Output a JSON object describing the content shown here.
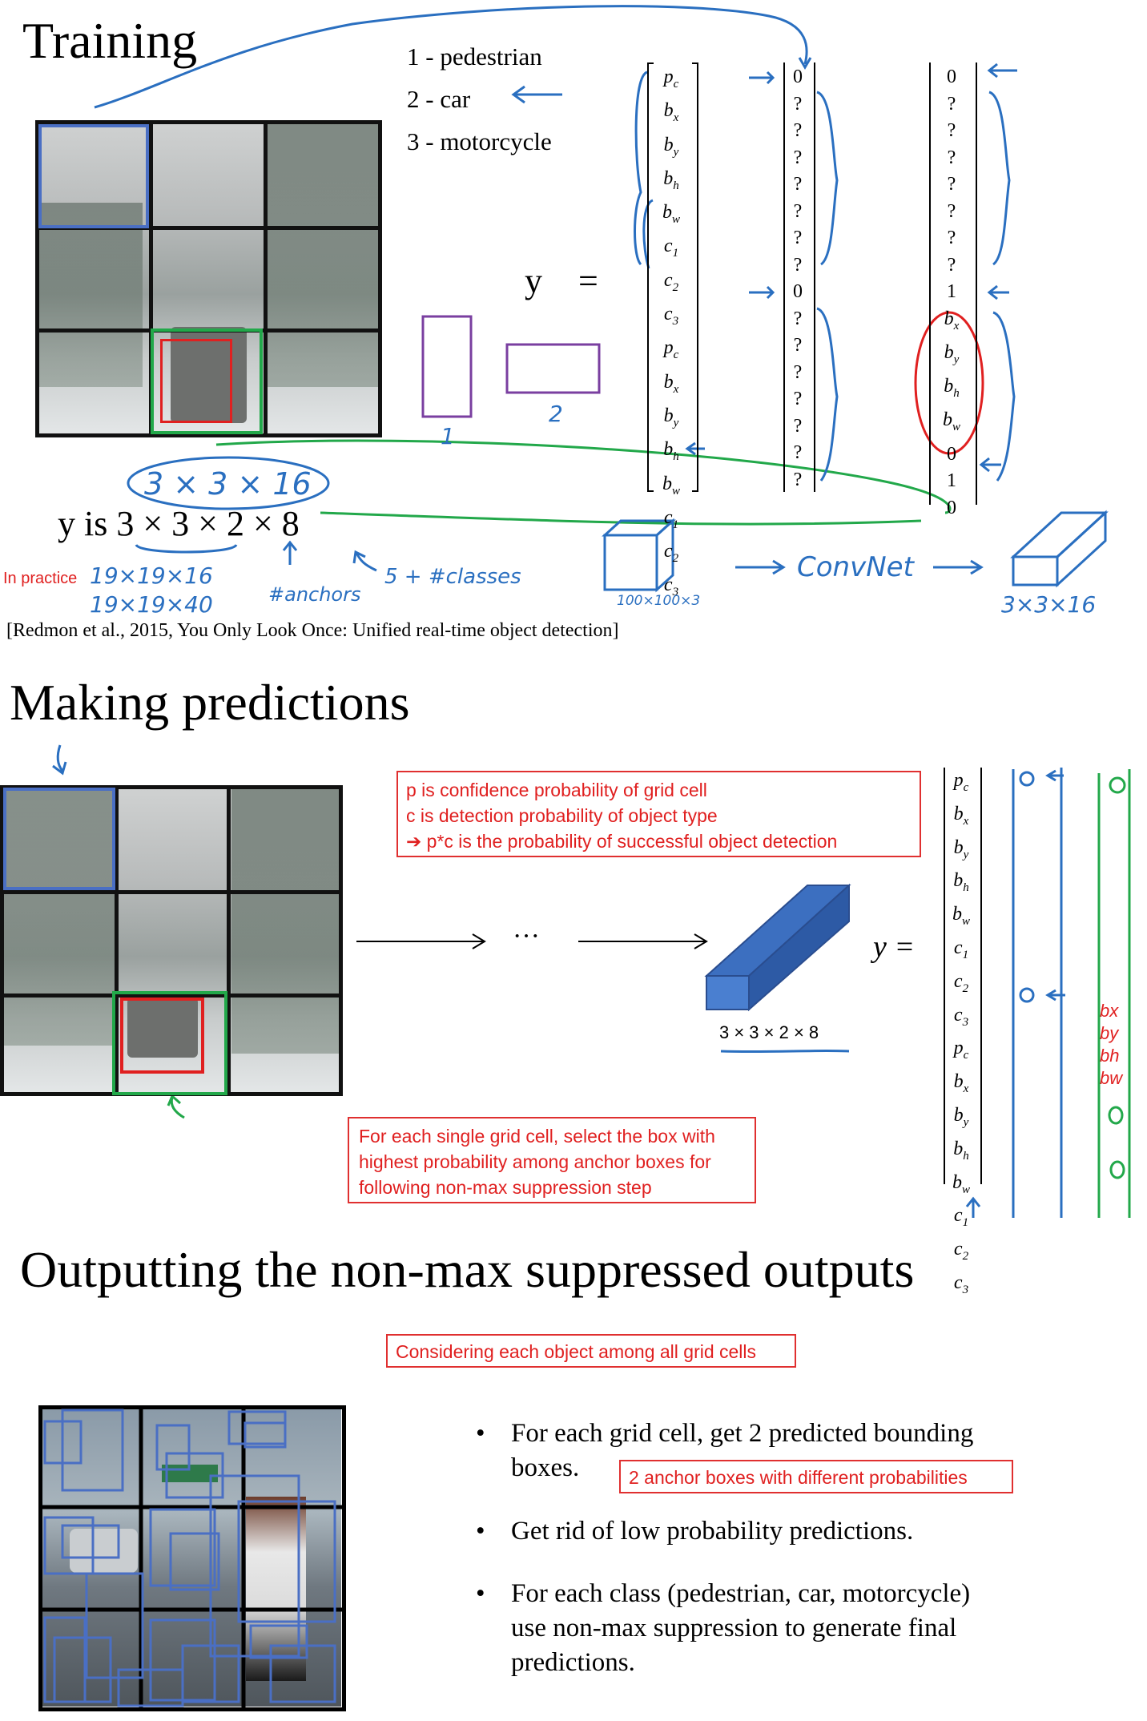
{
  "training": {
    "title": "Training",
    "classes": [
      "1 -  pedestrian",
      "2 -  car",
      "3 -  motorcycle"
    ],
    "y_label": "y",
    "equals": "=",
    "vector_labels": [
      "pc",
      "bx",
      "by",
      "bh",
      "bw",
      "c1",
      "c2",
      "c3",
      "pc",
      "bx",
      "by",
      "bh",
      "bw",
      "c1",
      "c2",
      "c3"
    ],
    "vector_q": [
      "0",
      "?",
      "?",
      "?",
      "?",
      "?",
      "?",
      "?",
      "0",
      "?",
      "?",
      "?",
      "?",
      "?",
      "?",
      "?"
    ],
    "vector_car": [
      "0",
      "?",
      "?",
      "?",
      "?",
      "?",
      "?",
      "?",
      "1",
      "bx",
      "by",
      "bh",
      "bw",
      "0",
      "1",
      "0"
    ],
    "anchor_labels": [
      "1",
      "2"
    ],
    "shape_hand": "3 × 3 × 16",
    "y_shape": "y  is 3 × 3 × 2 × 8",
    "in_practice": "In practice",
    "practice_1": "19×19×16",
    "practice_2": "19×19×40",
    "anchors_note": "#anchors",
    "classes_note": "5 + #classes",
    "input_size": "100×100×3",
    "convnet": "ConvNet",
    "output_size": "3×3×16",
    "citation": "[Redmon et al., 2015, You Only Look Once: Unified real-time object detection]"
  },
  "predictions": {
    "title": "Making predictions",
    "note_lines": [
      "p is confidence probability of grid cell",
      "c is detection probability of object type",
      "➔ p*c is the probability of successful object detection"
    ],
    "ellipsis": "···",
    "tensor_label": "3 × 3 × 2 × 8",
    "y_label": "y =",
    "vector_labels": [
      "pc",
      "bx",
      "by",
      "bh",
      "bw",
      "c1",
      "c2",
      "c3",
      "pc",
      "bx",
      "by",
      "bh",
      "bw",
      "c1",
      "c2",
      "c3"
    ],
    "green_annot": [
      "bx",
      "by",
      "bh",
      "bw"
    ],
    "select_note": [
      "For each single grid cell, select the box with",
      "highest probability among anchor boxes for",
      "following non-max suppression step"
    ]
  },
  "nms": {
    "title": "Outputting the non-max suppressed outputs",
    "note": "Considering each object among all grid cells",
    "bullets": [
      [
        "For each grid cell, get 2 predicted bounding",
        "boxes."
      ],
      [
        "Get rid of low probability predictions."
      ],
      [
        "For each class (pedestrian, car, motorcycle)",
        "use non-max suppression to generate final",
        "predictions."
      ]
    ],
    "anchor_note": "2 anchor boxes with different probabilities"
  },
  "colors": {
    "blue": "#2a6fc0",
    "red": "#e02020",
    "green": "#22a84a",
    "purple": "#7a3fa0",
    "box_blue": "#4a6fc4"
  }
}
